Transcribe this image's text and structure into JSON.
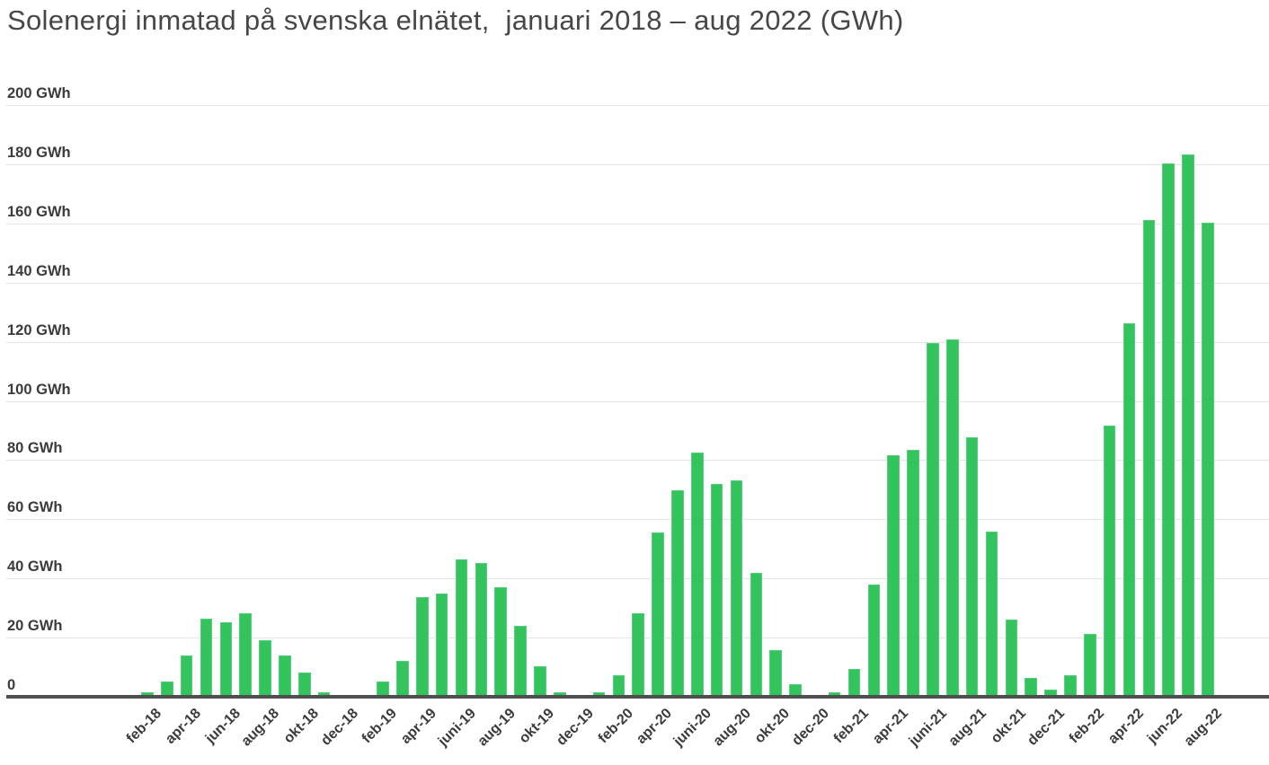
{
  "chart_data": {
    "type": "bar",
    "title": "Solenergi inmatad på svenska elnätet,  januari 2018 – aug 2022 (GWh)",
    "unit": "GWh",
    "ylim": [
      0,
      200
    ],
    "grid": "horizontal",
    "legend": "none",
    "bar_color": "#33c45e",
    "x": [
      "jan-18",
      "feb-18",
      "mar-18",
      "apr-18",
      "maj-18",
      "jun-18",
      "jul-18",
      "aug-18",
      "sep-18",
      "okt-18",
      "nov-18",
      "dec-18",
      "jan-19",
      "feb-19",
      "mar-19",
      "apr-19",
      "maj-19",
      "jun-19",
      "jul-19",
      "aug-19",
      "sep-19",
      "okt-19",
      "nov-19",
      "dec-19",
      "jan-20",
      "feb-20",
      "mar-20",
      "apr-20",
      "maj-20",
      "jun-20",
      "jul-20",
      "aug-20",
      "sep-20",
      "okt-20",
      "nov-20",
      "dec-20",
      "jan-21",
      "feb-21",
      "mar-21",
      "apr-21",
      "maj-21",
      "jun-21",
      "jul-21",
      "aug-21",
      "sep-21",
      "okt-21",
      "nov-21",
      "dec-21",
      "jan-22",
      "feb-22",
      "mar-22",
      "apr-22",
      "maj-22",
      "jun-22",
      "jul-22",
      "aug-22"
    ],
    "values": [
      0,
      1.4,
      5.2,
      13.9,
      26.3,
      25.2,
      28.3,
      19.1,
      13.9,
      8.3,
      1.4,
      0,
      0,
      5.2,
      12,
      33.7,
      34.9,
      46.3,
      45.1,
      37,
      24.1,
      10.4,
      1.4,
      0,
      1.6,
      7.4,
      28.1,
      55.6,
      69.8,
      82.7,
      72,
      73,
      41.9,
      15.9,
      4.4,
      0,
      1.4,
      9.4,
      38,
      81.5,
      83.4,
      119.6,
      120.8,
      87.7,
      55.8,
      26.2,
      6.4,
      2.4,
      7.4,
      21.2,
      91.8,
      126.2,
      161.3,
      180.3,
      183.2,
      160.3
    ],
    "x_tick_labels": [
      "feb-18",
      "apr-18",
      "jun-18",
      "aug-18",
      "okt-18",
      "dec-18",
      "feb-19",
      "apr-19",
      "juni-19",
      "aug-19",
      "okt-19",
      "dec-19",
      "feb-20",
      "apr-20",
      "juni-20",
      "aug-20",
      "okt-20",
      "dec-20",
      "feb-21",
      "apr-21",
      "juni-21",
      "aug-21",
      "okt-21",
      "dec-21",
      "feb-22",
      "apr-22",
      "jun-22",
      "aug-22"
    ],
    "y_ticks": [
      {
        "v": 0,
        "label": "0"
      },
      {
        "v": 20,
        "label": "20 GWh"
      },
      {
        "v": 40,
        "label": "40 GWh"
      },
      {
        "v": 60,
        "label": "60 GWh"
      },
      {
        "v": 80,
        "label": "80 GWh"
      },
      {
        "v": 100,
        "label": "100 GWh"
      },
      {
        "v": 120,
        "label": "120 GWh"
      },
      {
        "v": 140,
        "label": "140 GWh"
      },
      {
        "v": 160,
        "label": "160 GWh"
      },
      {
        "v": 180,
        "label": "180 GWh"
      },
      {
        "v": 200,
        "label": "200 GWh"
      }
    ],
    "colors": {
      "bar": "#33c45e",
      "gridline": "#e4e4e4",
      "axis": "#4f4f4f",
      "tick_text": "#3b3b3b",
      "title_text": "#474747",
      "background": "#ffffff"
    }
  }
}
